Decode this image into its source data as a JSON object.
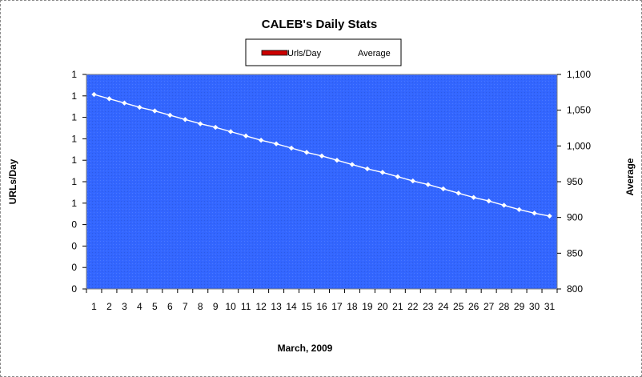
{
  "chart_data": {
    "type": "line",
    "title": "CALEB's Daily Stats",
    "xlabel": "March, 2009",
    "ylabel_left": "URLs/Day",
    "ylabel_right": "Average",
    "legend": {
      "placement": "top-center",
      "entries": [
        {
          "name": "Urls/Day",
          "color": "#cc0000",
          "symbol": "bar"
        },
        {
          "name": "Average",
          "color": "#ffffff",
          "symbol": "line"
        }
      ]
    },
    "plot_background": "#3366ff",
    "x": [
      1,
      2,
      3,
      4,
      5,
      6,
      7,
      8,
      9,
      10,
      11,
      12,
      13,
      14,
      15,
      16,
      17,
      18,
      19,
      20,
      21,
      22,
      23,
      24,
      25,
      26,
      27,
      28,
      29,
      30,
      31
    ],
    "x_tick_labels": [
      "1",
      "2",
      "3",
      "4",
      "5",
      "6",
      "7",
      "8",
      "9",
      "10",
      "11",
      "12",
      "13",
      "14",
      "15",
      "16",
      "17",
      "18",
      "19",
      "20",
      "21",
      "22",
      "23",
      "24",
      "25",
      "26",
      "27",
      "28",
      "29",
      "30",
      "31"
    ],
    "left_axis": {
      "tick_labels": [
        "1",
        "1",
        "1",
        "1",
        "1",
        "1",
        "1",
        "0",
        "0",
        "0",
        "0"
      ]
    },
    "right_axis": {
      "ylim": [
        800,
        1100
      ],
      "tick_values": [
        800,
        850,
        900,
        950,
        1000,
        1050,
        1100
      ],
      "tick_labels": [
        "800",
        "850",
        "900",
        "950",
        "1,000",
        "1,050",
        "1,100"
      ]
    },
    "series": [
      {
        "name": "Average",
        "axis": "right",
        "color": "#ffffff",
        "values": [
          1072,
          1066,
          1060,
          1054,
          1049,
          1043,
          1037,
          1031,
          1026,
          1020,
          1014,
          1008,
          1003,
          997,
          991,
          986,
          980,
          974,
          968,
          963,
          957,
          951,
          946,
          940,
          934,
          928,
          923,
          917,
          911,
          906,
          902
        ]
      }
    ]
  }
}
